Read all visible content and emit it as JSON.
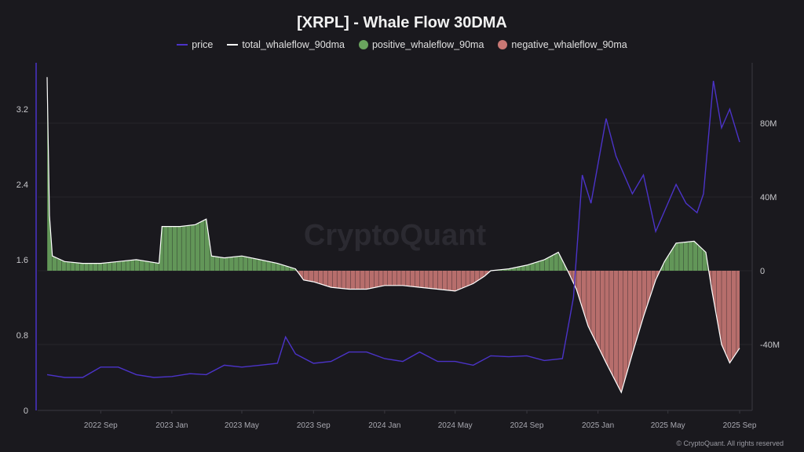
{
  "chart_data": {
    "type": "line",
    "title": "[XRPL] - Whale Flow 30DMA",
    "legend_placement": "top",
    "grid": true,
    "legend": [
      {
        "name": "price",
        "color": "#4b33c8",
        "kind": "line"
      },
      {
        "name": "total_whaleflow_90dma",
        "color": "#ffffff",
        "kind": "line"
      },
      {
        "name": "positive_whaleflow_90ma",
        "color": "#6aa45e",
        "kind": "dot"
      },
      {
        "name": "negative_whaleflow_90ma",
        "color": "#c97874",
        "kind": "dot"
      }
    ],
    "x_ticks": [
      "2022 Sep",
      "2023 Jan",
      "2023 May",
      "2023 Sep",
      "2024 Jan",
      "2024 May",
      "2024 Sep",
      "2025 Jan",
      "2025 May",
      "2025 Sep"
    ],
    "x_tick_dates": [
      "2022-09-01",
      "2023-01-01",
      "2023-05-01",
      "2023-09-01",
      "2024-01-01",
      "2024-05-01",
      "2024-09-01",
      "2025-01-01",
      "2025-05-01",
      "2025-09-01"
    ],
    "xlim": [
      "2022-06-01",
      "2025-09-05"
    ],
    "y_left": {
      "label": "",
      "ticks": [
        "0",
        "0.8",
        "1.6",
        "2.4",
        "3.2"
      ],
      "tick_values": [
        0,
        0.8,
        1.6,
        2.4,
        3.2
      ],
      "range": [
        0,
        3.7
      ]
    },
    "y_right": {
      "label": "",
      "ticks": [
        "80M",
        "40M",
        "0",
        "-40M"
      ],
      "tick_values": [
        80,
        40,
        0,
        -40
      ],
      "unit": "M",
      "range": [
        -75,
        115
      ]
    },
    "series": [
      {
        "name": "price",
        "axis": "left",
        "points": [
          [
            "2022-06-01",
            0.38
          ],
          [
            "2022-07-01",
            0.35
          ],
          [
            "2022-08-01",
            0.35
          ],
          [
            "2022-09-01",
            0.46
          ],
          [
            "2022-10-01",
            0.46
          ],
          [
            "2022-11-01",
            0.38
          ],
          [
            "2022-12-01",
            0.35
          ],
          [
            "2023-01-01",
            0.36
          ],
          [
            "2023-02-01",
            0.39
          ],
          [
            "2023-03-01",
            0.38
          ],
          [
            "2023-04-01",
            0.48
          ],
          [
            "2023-05-01",
            0.46
          ],
          [
            "2023-06-01",
            0.48
          ],
          [
            "2023-07-01",
            0.5
          ],
          [
            "2023-07-15",
            0.78
          ],
          [
            "2023-08-01",
            0.6
          ],
          [
            "2023-09-01",
            0.5
          ],
          [
            "2023-10-01",
            0.52
          ],
          [
            "2023-11-01",
            0.62
          ],
          [
            "2023-12-01",
            0.62
          ],
          [
            "2024-01-01",
            0.55
          ],
          [
            "2024-02-01",
            0.52
          ],
          [
            "2024-03-01",
            0.62
          ],
          [
            "2024-04-01",
            0.52
          ],
          [
            "2024-05-01",
            0.52
          ],
          [
            "2024-06-01",
            0.48
          ],
          [
            "2024-07-01",
            0.58
          ],
          [
            "2024-08-01",
            0.57
          ],
          [
            "2024-09-01",
            0.58
          ],
          [
            "2024-10-01",
            0.53
          ],
          [
            "2024-11-01",
            0.55
          ],
          [
            "2024-11-20",
            1.2
          ],
          [
            "2024-12-05",
            2.5
          ],
          [
            "2024-12-20",
            2.2
          ],
          [
            "2025-01-15",
            3.1
          ],
          [
            "2025-02-01",
            2.7
          ],
          [
            "2025-03-01",
            2.3
          ],
          [
            "2025-03-20",
            2.5
          ],
          [
            "2025-04-10",
            1.9
          ],
          [
            "2025-05-01",
            2.2
          ],
          [
            "2025-05-15",
            2.4
          ],
          [
            "2025-06-01",
            2.2
          ],
          [
            "2025-06-20",
            2.1
          ],
          [
            "2025-07-01",
            2.3
          ],
          [
            "2025-07-18",
            3.5
          ],
          [
            "2025-08-01",
            3.0
          ],
          [
            "2025-08-15",
            3.2
          ],
          [
            "2025-09-01",
            2.85
          ]
        ]
      },
      {
        "name": "total_whaleflow_90dma",
        "axis": "right",
        "points": [
          [
            "2022-06-01",
            105
          ],
          [
            "2022-06-05",
            30
          ],
          [
            "2022-06-10",
            8
          ],
          [
            "2022-07-01",
            5
          ],
          [
            "2022-08-01",
            4
          ],
          [
            "2022-09-01",
            4
          ],
          [
            "2022-10-01",
            5
          ],
          [
            "2022-11-01",
            6
          ],
          [
            "2022-12-10",
            4
          ],
          [
            "2022-12-15",
            24
          ],
          [
            "2023-01-15",
            24
          ],
          [
            "2023-02-10",
            25
          ],
          [
            "2023-03-01",
            28
          ],
          [
            "2023-03-10",
            8
          ],
          [
            "2023-04-01",
            7
          ],
          [
            "2023-05-01",
            8
          ],
          [
            "2023-06-01",
            6
          ],
          [
            "2023-07-01",
            4
          ],
          [
            "2023-08-01",
            1
          ],
          [
            "2023-08-15",
            -5
          ],
          [
            "2023-09-01",
            -6
          ],
          [
            "2023-10-01",
            -9
          ],
          [
            "2023-11-01",
            -10
          ],
          [
            "2023-12-01",
            -10
          ],
          [
            "2024-01-01",
            -8
          ],
          [
            "2024-02-01",
            -8
          ],
          [
            "2024-03-01",
            -9
          ],
          [
            "2024-04-01",
            -10
          ],
          [
            "2024-05-01",
            -11
          ],
          [
            "2024-06-01",
            -7
          ],
          [
            "2024-06-20",
            -3
          ],
          [
            "2024-07-01",
            0
          ],
          [
            "2024-08-01",
            1
          ],
          [
            "2024-09-01",
            3
          ],
          [
            "2024-10-01",
            6
          ],
          [
            "2024-10-25",
            10
          ],
          [
            "2024-11-10",
            0
          ],
          [
            "2024-11-25",
            -10
          ],
          [
            "2024-12-15",
            -30
          ],
          [
            "2025-01-15",
            -50
          ],
          [
            "2025-02-10",
            -66
          ],
          [
            "2025-03-01",
            -45
          ],
          [
            "2025-03-20",
            -25
          ],
          [
            "2025-04-10",
            -5
          ],
          [
            "2025-04-25",
            5
          ],
          [
            "2025-05-15",
            15
          ],
          [
            "2025-06-15",
            16
          ],
          [
            "2025-07-05",
            10
          ],
          [
            "2025-07-15",
            -10
          ],
          [
            "2025-08-01",
            -40
          ],
          [
            "2025-08-15",
            -50
          ],
          [
            "2025-09-01",
            -42
          ]
        ]
      }
    ],
    "watermark": "CryptoQuant"
  },
  "footer": "© CryptoQuant. All rights reserved"
}
